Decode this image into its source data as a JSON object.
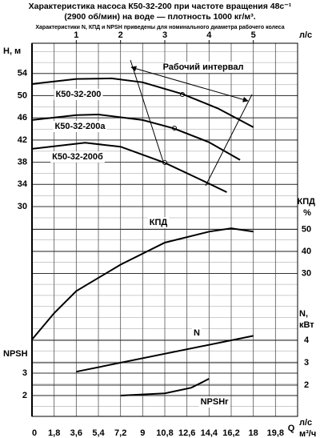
{
  "chart_data": {
    "type": "line",
    "title": [
      "Характеристика насоса К50-32-200 при частоте вращения 48с⁻¹",
      "(2900 об/мин) на воде — плотность 1000 кг/м³."
    ],
    "subtitle": "Характеристики N, КПД и NPSH приведены для номинального диаметра рабочего колеса",
    "annotation": "Рабочий интервал",
    "xlabel": "л/с",
    "x2label": [
      "Q",
      "м³/ч"
    ],
    "ylabel": "H, м",
    "y2label": [
      "КПД",
      "%"
    ],
    "y3label": [
      "N,",
      "кВт"
    ],
    "y4label": "NPSH",
    "xlim": [
      0,
      6
    ],
    "xticks": [
      1,
      2,
      3,
      4,
      5
    ],
    "x2lim": [
      0,
      21.6
    ],
    "x2ticks": [
      0,
      {
        "value": 1.8,
        "label": "1,8"
      },
      {
        "value": 3.6,
        "label": "3,6"
      },
      {
        "value": 5.4,
        "label": "5,4"
      },
      {
        "value": 7.2,
        "label": "7,2"
      },
      9,
      {
        "value": 10.8,
        "label": "10,8"
      },
      {
        "value": 12.6,
        "label": "12,6"
      },
      {
        "value": 14.4,
        "label": "14,4"
      },
      {
        "value": 16.2,
        "label": "16,2"
      },
      18,
      {
        "value": 19.8,
        "label": "19,8"
      }
    ],
    "ylim": [
      30,
      58
    ],
    "yticks": [
      30,
      34,
      38,
      42,
      46,
      50,
      54
    ],
    "y2lim": [
      0,
      60
    ],
    "y2ticks": [
      30,
      40,
      50
    ],
    "y3lim": [
      2,
      4.5
    ],
    "y3ticks": [
      2,
      3,
      4
    ],
    "y4lim": [
      2,
      4
    ],
    "y4ticks": [
      2,
      3
    ],
    "grid": true,
    "series": [
      {
        "name": "К50-32-200",
        "color": "#000000",
        "axis": "y",
        "x": [
          0,
          1,
          1.8,
          2.5,
          3.4,
          4.2,
          5.0
        ],
        "values": [
          52.1,
          53.0,
          53.1,
          52.4,
          50.3,
          47.7,
          44.3
        ]
      },
      {
        "name": "К50-32-200а",
        "color": "#000000",
        "axis": "y",
        "x": [
          0,
          1,
          1.5,
          2.5,
          3.2,
          4.0,
          4.7
        ],
        "values": [
          45.6,
          46.5,
          46.6,
          45.6,
          44.1,
          41.6,
          38.4
        ]
      },
      {
        "name": "К50-32-200б",
        "color": "#000000",
        "axis": "y",
        "x": [
          0,
          1.2,
          2,
          3,
          3.8,
          4.4
        ],
        "values": [
          40.4,
          41.5,
          40.8,
          37.9,
          34.9,
          32.6
        ]
      },
      {
        "name": "КПД",
        "color": "#000000",
        "axis": "y2",
        "x": [
          0,
          0.5,
          1,
          2,
          3,
          4,
          4.5,
          5
        ],
        "values": [
          0,
          12,
          22,
          34,
          44,
          49,
          50.5,
          49
        ]
      },
      {
        "name": "N",
        "color": "#000000",
        "axis": "y3",
        "x": [
          1,
          5
        ],
        "values": [
          2.6,
          4.2
        ]
      },
      {
        "name": "NPSHr",
        "color": "#000000",
        "axis": "y4",
        "x": [
          2,
          3,
          3.6,
          4
        ],
        "values": [
          2.0,
          2.1,
          2.35,
          2.75
        ]
      }
    ]
  }
}
